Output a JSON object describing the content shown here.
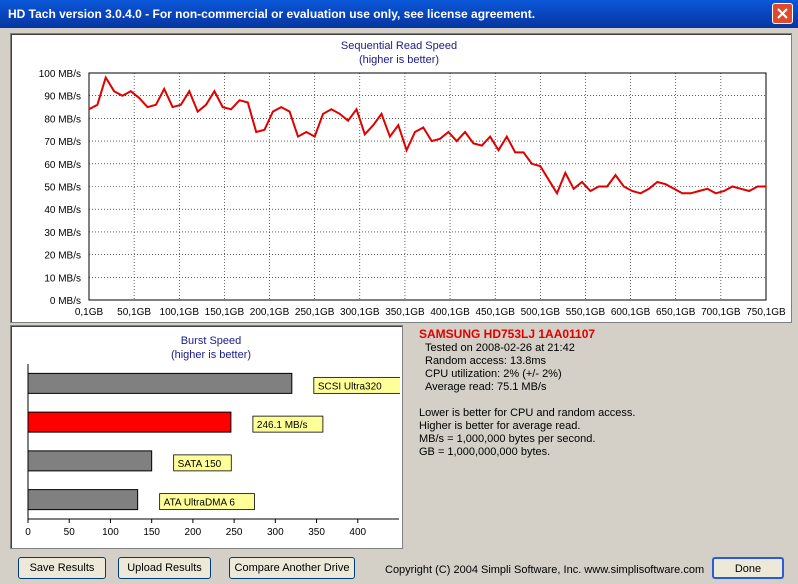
{
  "window": {
    "title": "HD Tach version 3.0.4.0  - For non-commercial or evaluation use only, see license agreement."
  },
  "chart_data": [
    {
      "type": "line",
      "title": "Sequential Read Speed",
      "subtitle": "(higher is better)",
      "xlabel": "",
      "ylabel": "",
      "y_unit": "MB/s",
      "ylim": [
        0,
        100
      ],
      "yticks": [
        "0 MB/s",
        "10 MB/s",
        "20 MB/s",
        "30 MB/s",
        "40 MB/s",
        "50 MB/s",
        "60 MB/s",
        "70 MB/s",
        "80 MB/s",
        "90 MB/s",
        "100 MB/s"
      ],
      "xticks": [
        "0,1GB",
        "50,1GB",
        "100,1GB",
        "150,1GB",
        "200,1GB",
        "250,1GB",
        "300,1GB",
        "350,1GB",
        "400,1GB",
        "450,1GB",
        "500,1GB",
        "550,1GB",
        "600,1GB",
        "650,1GB",
        "700,1GB",
        "750,1GB"
      ],
      "xlim": [
        0.1,
        750.1
      ],
      "grid": true,
      "color": "#e00000",
      "series": [
        {
          "name": "SAMSUNG HD753LJ 1AA01107",
          "x": [
            0.1,
            9.4,
            18.6,
            27.9,
            37.1,
            46.4,
            55.7,
            64.9,
            74.2,
            83.4,
            92.7,
            101.9,
            111.2,
            120.5,
            129.7,
            139,
            148.2,
            157.5,
            166.8,
            176,
            185.3,
            194.5,
            203.8,
            213,
            222.3,
            231.6,
            240.8,
            250.1,
            259.3,
            268.6,
            277.9,
            287.1,
            296.4,
            305.6,
            314.9,
            324.1,
            333.4,
            342.7,
            351.9,
            361.2,
            370.4,
            379.7,
            389,
            398.2,
            407.5,
            416.7,
            426,
            435.2,
            444.5,
            453.8,
            463,
            472.3,
            481.5,
            490.8,
            500.1,
            509.3,
            518.6,
            527.8,
            537.1,
            546.3,
            555.6,
            564.9,
            574.1,
            583.4,
            592.6,
            601.9,
            611.2,
            620.4,
            629.7,
            638.9,
            648.2,
            657.4,
            666.7,
            676,
            685.2,
            694.5,
            703.7,
            713,
            722.3,
            731.5,
            740.8,
            750.1
          ],
          "values": [
            84,
            86,
            98,
            92,
            90,
            92,
            89,
            85,
            86,
            93,
            85,
            86,
            92,
            83,
            86,
            92,
            85,
            84,
            88,
            87,
            74,
            75,
            83,
            85,
            83,
            72,
            74,
            72,
            82,
            84,
            82,
            79,
            84,
            73,
            77,
            82,
            72,
            77,
            66,
            74,
            76,
            70,
            71,
            74,
            70,
            74,
            69,
            68,
            72,
            66,
            72,
            65,
            65,
            60,
            59,
            53,
            47,
            56,
            49,
            52,
            48,
            50,
            50,
            55,
            50,
            48,
            47,
            49,
            52,
            51,
            49,
            47,
            47,
            48,
            49,
            47,
            48,
            50,
            49,
            48,
            50,
            50
          ]
        }
      ]
    },
    {
      "type": "bar",
      "orientation": "horizontal",
      "title": "Burst Speed",
      "subtitle": "(higher is better)",
      "xlim": [
        0,
        450
      ],
      "xticks": [
        "0",
        "50",
        "100",
        "150",
        "200",
        "250",
        "300",
        "350",
        "400"
      ],
      "categories": [
        "SCSI Ultra320",
        "246.1 MB/s",
        "SATA 150",
        "ATA UltraDMA 6"
      ],
      "values": [
        320,
        246.1,
        150,
        133
      ],
      "colors": [
        "#808080",
        "#ff0000",
        "#808080",
        "#808080"
      ]
    }
  ],
  "info": {
    "drive_name": "SAMSUNG HD753LJ 1AA01107",
    "tested": "Tested on 2008-02-26 at 21:42",
    "random_access": "Random access: 13.8ms",
    "cpu": "CPU utilization: 2% (+/- 2%)",
    "average_read": "Average read: 75.1 MB/s",
    "notes": [
      "Lower is better for CPU and random access.",
      "Higher is better for average read.",
      "MB/s = 1,000,000 bytes per second.",
      "GB = 1,000,000,000 bytes."
    ]
  },
  "buttons": {
    "save": "Save Results",
    "upload": "Upload Results",
    "compare": "Compare Another Drive",
    "done": "Done"
  },
  "copyright": "Copyright (C) 2004 Simpli Software, Inc. www.simplisoftware.com"
}
